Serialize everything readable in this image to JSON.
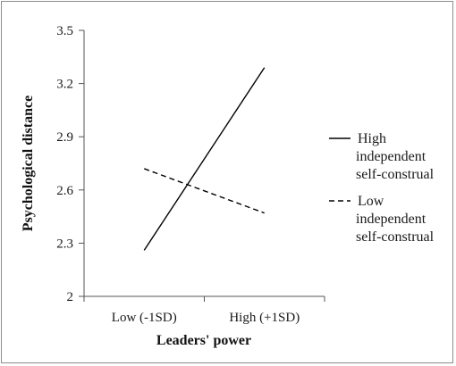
{
  "chart_data": {
    "type": "line",
    "title": "",
    "xlabel": "Leaders' power",
    "ylabel": "Psychological distance",
    "categories": [
      "Low (-1SD)",
      "High (+1SD)"
    ],
    "ylim": [
      2,
      3.5
    ],
    "yticks": [
      "2",
      "2.3",
      "2.6",
      "2.9",
      "3.2",
      "3.5"
    ],
    "grid": false,
    "legend_position": "right",
    "series": [
      {
        "name": "High independent self-construal",
        "name_lines": [
          "High",
          "independent",
          "self-construal"
        ],
        "values": [
          2.26,
          3.29
        ],
        "line_style": "solid",
        "color": "#000000"
      },
      {
        "name": "Low independent self-construal",
        "name_lines": [
          "Low",
          "independent",
          "self-construal"
        ],
        "values": [
          2.72,
          2.47
        ],
        "line_style": "dashed",
        "color": "#000000"
      }
    ]
  }
}
